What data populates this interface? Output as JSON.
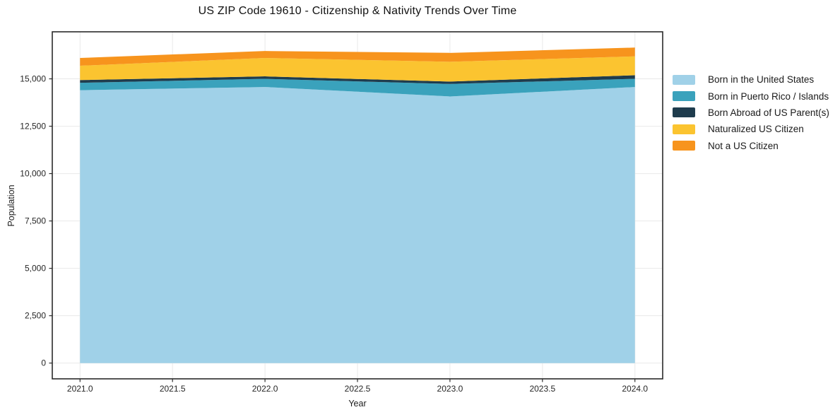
{
  "chart_data": {
    "type": "area",
    "stacked": true,
    "title": "US ZIP Code 19610 - Citizenship & Nativity Trends Over Time",
    "xlabel": "Year",
    "ylabel": "Population",
    "x": [
      2021,
      2022,
      2023,
      2024
    ],
    "series": [
      {
        "name": "Born in the United States",
        "color": "#a0d1e8",
        "values": [
          14400,
          14570,
          14070,
          14570
        ]
      },
      {
        "name": "Born in Puerto Rico / Islands",
        "color": "#3aa2bc",
        "values": [
          390,
          430,
          660,
          430
        ]
      },
      {
        "name": "Born Abroad of US Parent(s)",
        "color": "#1f3c4d",
        "values": [
          145,
          130,
          125,
          190
        ]
      },
      {
        "name": "Naturalized US Citizen",
        "color": "#fbc430",
        "values": [
          755,
          970,
          1045,
          995
        ]
      },
      {
        "name": "Not a US Citizen",
        "color": "#f7941d",
        "values": [
          410,
          370,
          470,
          465
        ]
      }
    ],
    "stack_totals": [
      16100,
      16470,
      16370,
      16650
    ],
    "xlim": [
      2020.85,
      2024.15
    ],
    "ylim": [
      -832,
      17482
    ],
    "xticks": {
      "values": [
        2021,
        2021.5,
        2022,
        2022.5,
        2023,
        2023.5,
        2024
      ],
      "labels": [
        "2021.0",
        "2021.5",
        "2022.0",
        "2022.5",
        "2023.0",
        "2023.5",
        "2024.0"
      ]
    },
    "yticks": {
      "values": [
        0,
        2500,
        5000,
        7500,
        10000,
        12500,
        15000
      ],
      "labels": [
        "0",
        "2,500",
        "5,000",
        "7,500",
        "10,000",
        "12,500",
        "15,000"
      ]
    },
    "grid": true,
    "legend_position": "outside-right-top"
  },
  "colors": {
    "background": "#ffffff",
    "grid": "#e9e9e9",
    "spine": "#2a2a2a",
    "tick": "#2a2a2a",
    "tick_label": "#262626"
  }
}
